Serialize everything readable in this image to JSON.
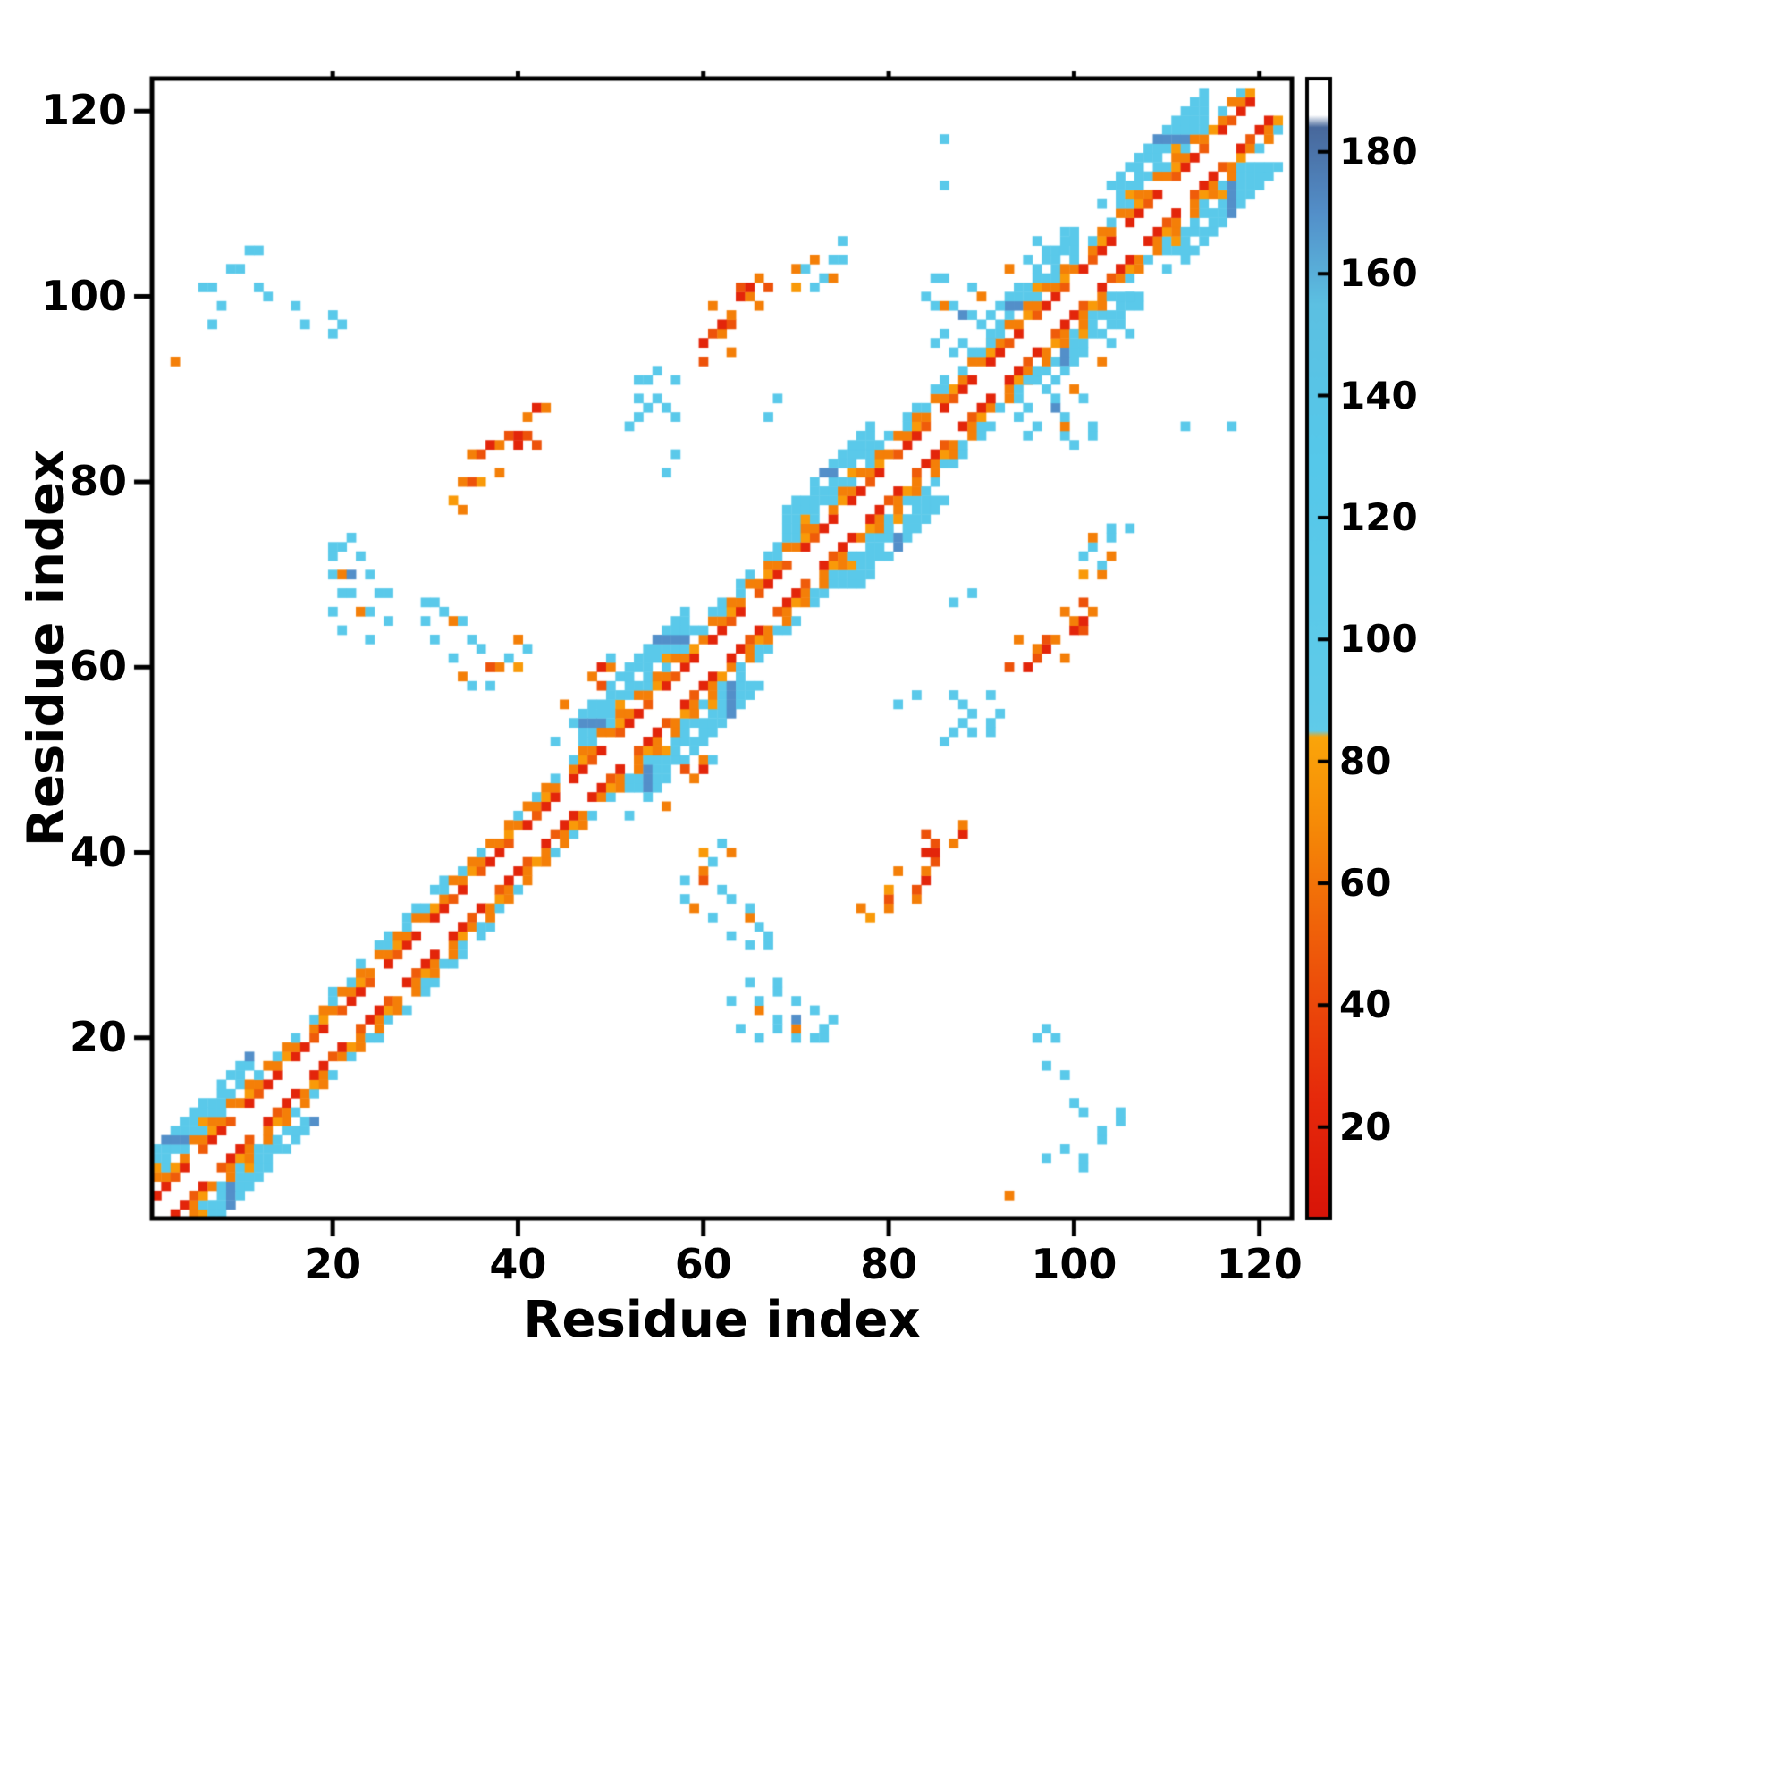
{
  "chart_data": {
    "type": "heatmap",
    "title": "",
    "xlabel": "Residue index",
    "ylabel": "Residue index",
    "x_ticks": [
      20,
      40,
      60,
      80,
      100,
      120
    ],
    "y_ticks": [
      20,
      40,
      60,
      80,
      100,
      120
    ],
    "n_residues": 122,
    "axis_range": [
      1,
      123
    ],
    "grid": false,
    "symmetric": true,
    "background_value_color": "#ffffff",
    "colorbar": {
      "range": [
        5,
        192
      ],
      "ticks": [
        20,
        40,
        60,
        80,
        100,
        120,
        140,
        160,
        180
      ],
      "stops": [
        {
          "v": 5,
          "c": "#d81408"
        },
        {
          "v": 25,
          "c": "#e62a0b"
        },
        {
          "v": 50,
          "c": "#ef5c0a"
        },
        {
          "v": 70,
          "c": "#f68b07"
        },
        {
          "v": 84,
          "c": "#fba50a"
        },
        {
          "v": 85,
          "c": "#60cbe9"
        },
        {
          "v": 130,
          "c": "#55c8ea"
        },
        {
          "v": 155,
          "c": "#5cc0e2"
        },
        {
          "v": 170,
          "c": "#538fc9"
        },
        {
          "v": 184,
          "c": "#48689c"
        },
        {
          "v": 186,
          "c": "#ffffff"
        },
        {
          "v": 192,
          "c": "#ffffff"
        }
      ]
    },
    "band_segments": [
      {
        "from": 1,
        "to": 12,
        "maxOffset": 7,
        "blob": true
      },
      {
        "from": 12,
        "to": 20,
        "maxOffset": 4,
        "blob": false
      },
      {
        "from": 20,
        "to": 34,
        "maxOffset": 5,
        "blob": false
      },
      {
        "from": 34,
        "to": 47,
        "maxOffset": 4,
        "blob": false
      },
      {
        "from": 47,
        "to": 59,
        "maxOffset": 8,
        "blob": true
      },
      {
        "from": 59,
        "to": 69,
        "maxOffset": 5,
        "blob": false
      },
      {
        "from": 69,
        "to": 79,
        "maxOffset": 8,
        "blob": true
      },
      {
        "from": 79,
        "to": 93,
        "maxOffset": 5,
        "blob": false
      },
      {
        "from": 93,
        "to": 101,
        "maxOffset": 7,
        "blob": true
      },
      {
        "from": 101,
        "to": 105,
        "maxOffset": 4,
        "blob": false
      },
      {
        "from": 105,
        "to": 115,
        "maxOffset": 8,
        "blob": true
      },
      {
        "from": 115,
        "to": 118,
        "maxOffset": 4,
        "blob": false
      },
      {
        "from": 118,
        "to": 122,
        "maxOffset": 7,
        "blob": true
      }
    ],
    "contacts": [
      [
        3,
        93,
        65
      ],
      [
        6,
        101,
        110
      ],
      [
        7,
        101,
        110
      ],
      [
        7,
        97,
        110
      ],
      [
        8,
        99,
        110
      ],
      [
        9,
        103,
        110
      ],
      [
        10,
        103,
        110
      ],
      [
        11,
        105,
        110
      ],
      [
        12,
        105,
        110
      ],
      [
        12,
        101,
        110
      ],
      [
        13,
        100,
        110
      ],
      [
        16,
        99,
        110
      ],
      [
        17,
        97,
        110
      ],
      [
        20,
        96,
        110
      ],
      [
        20,
        98,
        110
      ],
      [
        21,
        97,
        110
      ],
      [
        20,
        73,
        110
      ],
      [
        21,
        73,
        110
      ],
      [
        20,
        72,
        110
      ],
      [
        23,
        72,
        110
      ],
      [
        20,
        70,
        110
      ],
      [
        21,
        70,
        65
      ],
      [
        22,
        70,
        170
      ],
      [
        24,
        70,
        110
      ],
      [
        21,
        68,
        110
      ],
      [
        22,
        68,
        110
      ],
      [
        25,
        68,
        110
      ],
      [
        26,
        68,
        110
      ],
      [
        20,
        66,
        110
      ],
      [
        23,
        66,
        65
      ],
      [
        24,
        66,
        110
      ],
      [
        21,
        64,
        110
      ],
      [
        26,
        65,
        110
      ],
      [
        24,
        63,
        110
      ],
      [
        22,
        74,
        110
      ],
      [
        30,
        67,
        110
      ],
      [
        31,
        67,
        110
      ],
      [
        32,
        66,
        110
      ],
      [
        30,
        65,
        110
      ],
      [
        33,
        65,
        65
      ],
      [
        34,
        65,
        110
      ],
      [
        31,
        63,
        110
      ],
      [
        35,
        63,
        110
      ],
      [
        33,
        61,
        110
      ],
      [
        36,
        62,
        110
      ],
      [
        34,
        59,
        65
      ],
      [
        35,
        58,
        110
      ],
      [
        37,
        58,
        110
      ],
      [
        33,
        78,
        78
      ],
      [
        34,
        80,
        65
      ],
      [
        35,
        80,
        45
      ],
      [
        35,
        83,
        65
      ],
      [
        36,
        83,
        45
      ],
      [
        37,
        84,
        20
      ],
      [
        38,
        84,
        65
      ],
      [
        36,
        80,
        78
      ],
      [
        38,
        81,
        65
      ],
      [
        39,
        85,
        45
      ],
      [
        40,
        85,
        20
      ],
      [
        41,
        85,
        45
      ],
      [
        40,
        84,
        20
      ],
      [
        41,
        87,
        65
      ],
      [
        42,
        88,
        20
      ],
      [
        43,
        88,
        65
      ],
      [
        42,
        84,
        45
      ],
      [
        34,
        77,
        65
      ],
      [
        38,
        60,
        65
      ],
      [
        39,
        61,
        110
      ],
      [
        40,
        60,
        78
      ],
      [
        41,
        62,
        110
      ],
      [
        40,
        63,
        65
      ],
      [
        37,
        60,
        45
      ],
      [
        44,
        52,
        110
      ],
      [
        46,
        54,
        110
      ],
      [
        45,
        56,
        65
      ],
      [
        48,
        59,
        65
      ],
      [
        49,
        60,
        20
      ],
      [
        50,
        60,
        65
      ],
      [
        50,
        61,
        110
      ],
      [
        49,
        58,
        45
      ],
      [
        52,
        86,
        110
      ],
      [
        53,
        91,
        110
      ],
      [
        54,
        91,
        110
      ],
      [
        53,
        89,
        110
      ],
      [
        55,
        89,
        110
      ],
      [
        54,
        88,
        110
      ],
      [
        56,
        88,
        110
      ],
      [
        53,
        87,
        110
      ],
      [
        57,
        87,
        110
      ],
      [
        55,
        92,
        110
      ],
      [
        57,
        91,
        110
      ],
      [
        56,
        81,
        110
      ],
      [
        57,
        83,
        110
      ],
      [
        60,
        95,
        20
      ],
      [
        61,
        96,
        45
      ],
      [
        62,
        96,
        65
      ],
      [
        62,
        97,
        20
      ],
      [
        63,
        97,
        45
      ],
      [
        63,
        98,
        65
      ],
      [
        61,
        99,
        65
      ],
      [
        64,
        100,
        20
      ],
      [
        64,
        101,
        45
      ],
      [
        65,
        100,
        65
      ],
      [
        65,
        101,
        20
      ],
      [
        66,
        99,
        65
      ],
      [
        66,
        102,
        65
      ],
      [
        67,
        101,
        45
      ],
      [
        63,
        94,
        65
      ],
      [
        60,
        93,
        45
      ],
      [
        70,
        103,
        65
      ],
      [
        71,
        103,
        110
      ],
      [
        72,
        104,
        65
      ],
      [
        73,
        102,
        110
      ],
      [
        74,
        104,
        110
      ],
      [
        70,
        101,
        78
      ],
      [
        74,
        102,
        65
      ],
      [
        75,
        104,
        110
      ],
      [
        75,
        106,
        110
      ],
      [
        72,
        101,
        110
      ],
      [
        68,
        89,
        110
      ],
      [
        67,
        87,
        110
      ],
      [
        84,
        100,
        110
      ],
      [
        85,
        102,
        110
      ],
      [
        86,
        102,
        110
      ],
      [
        85,
        99,
        110
      ],
      [
        86,
        99,
        65
      ],
      [
        87,
        99,
        110
      ],
      [
        88,
        98,
        170
      ],
      [
        89,
        98,
        110
      ],
      [
        86,
        96,
        110
      ],
      [
        90,
        97,
        110
      ],
      [
        91,
        98,
        110
      ],
      [
        88,
        95,
        110
      ],
      [
        92,
        99,
        110
      ],
      [
        87,
        94,
        110
      ],
      [
        89,
        101,
        110
      ],
      [
        90,
        100,
        65
      ],
      [
        85,
        95,
        110
      ],
      [
        91,
        95,
        110
      ],
      [
        95,
        104,
        110
      ],
      [
        96,
        106,
        110
      ],
      [
        97,
        105,
        110
      ],
      [
        99,
        107,
        110
      ],
      [
        93,
        103,
        65
      ],
      [
        100,
        106,
        110
      ],
      [
        103,
        110,
        110
      ],
      [
        104,
        112,
        110
      ],
      [
        86,
        117,
        110
      ],
      [
        86,
        112,
        110
      ]
    ]
  }
}
